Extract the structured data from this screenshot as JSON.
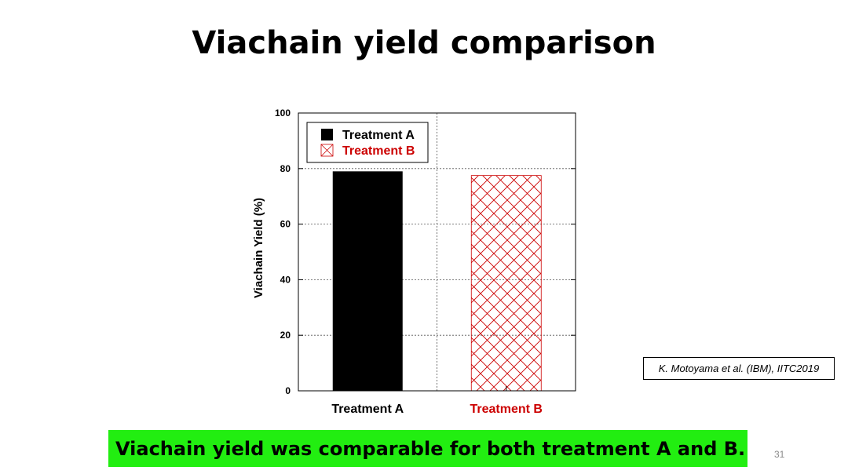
{
  "slide": {
    "title": "Viachain yield comparison",
    "citation": "K. Motoyama et al. (IBM), IITC2019",
    "conclusion": "Viachain yield was comparable for both treatment A and B.",
    "page_number": "31"
  },
  "chart_data": {
    "type": "bar",
    "title": "",
    "xlabel": "",
    "ylabel": "Viachain Yield (%)",
    "categories": [
      "Treatment A",
      "Treatment B"
    ],
    "values": [
      79,
      77.5
    ],
    "ylim": [
      0,
      100
    ],
    "yticks": [
      0,
      20,
      40,
      60,
      80,
      100
    ],
    "grid": true,
    "legend": {
      "placement": "top-left",
      "entries": [
        {
          "label": "Treatment A",
          "style": "solid",
          "color": "#000000"
        },
        {
          "label": "Treatment B",
          "style": "crosshatch",
          "color": "#cc0000"
        }
      ]
    },
    "category_colors": [
      "#000000",
      "#cc0000"
    ],
    "bar_styles": [
      "solid",
      "crosshatch"
    ]
  },
  "colors": {
    "highlight": "#22ee11",
    "treatment_b": "#cc0000"
  }
}
